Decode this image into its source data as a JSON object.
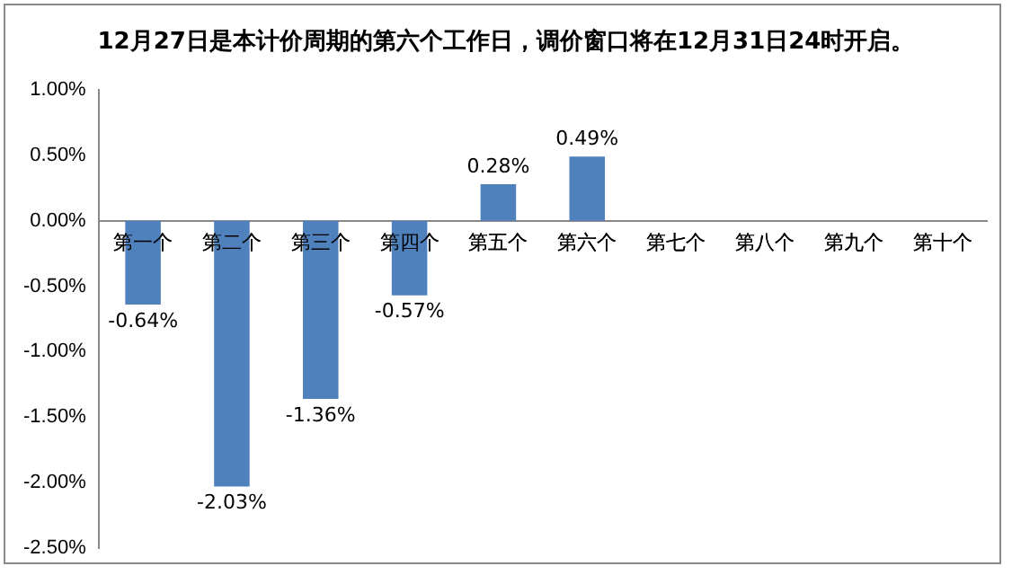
{
  "chart_data": {
    "type": "bar",
    "title": "12月27日是本计价周期的第六个工作日，调价窗口将在12月31日24时开启。",
    "categories": [
      "第一个",
      "第二个",
      "第三个",
      "第四个",
      "第五个",
      "第六个",
      "第七个",
      "第八个",
      "第九个",
      "第十个"
    ],
    "values": [
      -0.64,
      -2.03,
      -1.36,
      -0.57,
      0.28,
      0.49,
      null,
      null,
      null,
      null
    ],
    "value_labels": [
      "-0.64%",
      "-2.03%",
      "-1.36%",
      "-0.57%",
      "0.28%",
      "0.49%",
      null,
      null,
      null,
      null
    ],
    "color": "#4f81bd",
    "ylim": [
      -2.5,
      1.0
    ],
    "yticks": [
      {
        "value": -2.5,
        "label": "-2.50%"
      },
      {
        "value": -2.0,
        "label": "-2.00%"
      },
      {
        "value": -1.5,
        "label": "-1.50%"
      },
      {
        "value": -1.0,
        "label": "-1.00%"
      },
      {
        "value": -0.5,
        "label": "-0.50%"
      },
      {
        "value": 0,
        "label": "0.00%"
      },
      {
        "value": 0.5,
        "label": "0.50%"
      },
      {
        "value": 1.0,
        "label": "1.00%"
      }
    ],
    "grid": false,
    "legend": false
  }
}
